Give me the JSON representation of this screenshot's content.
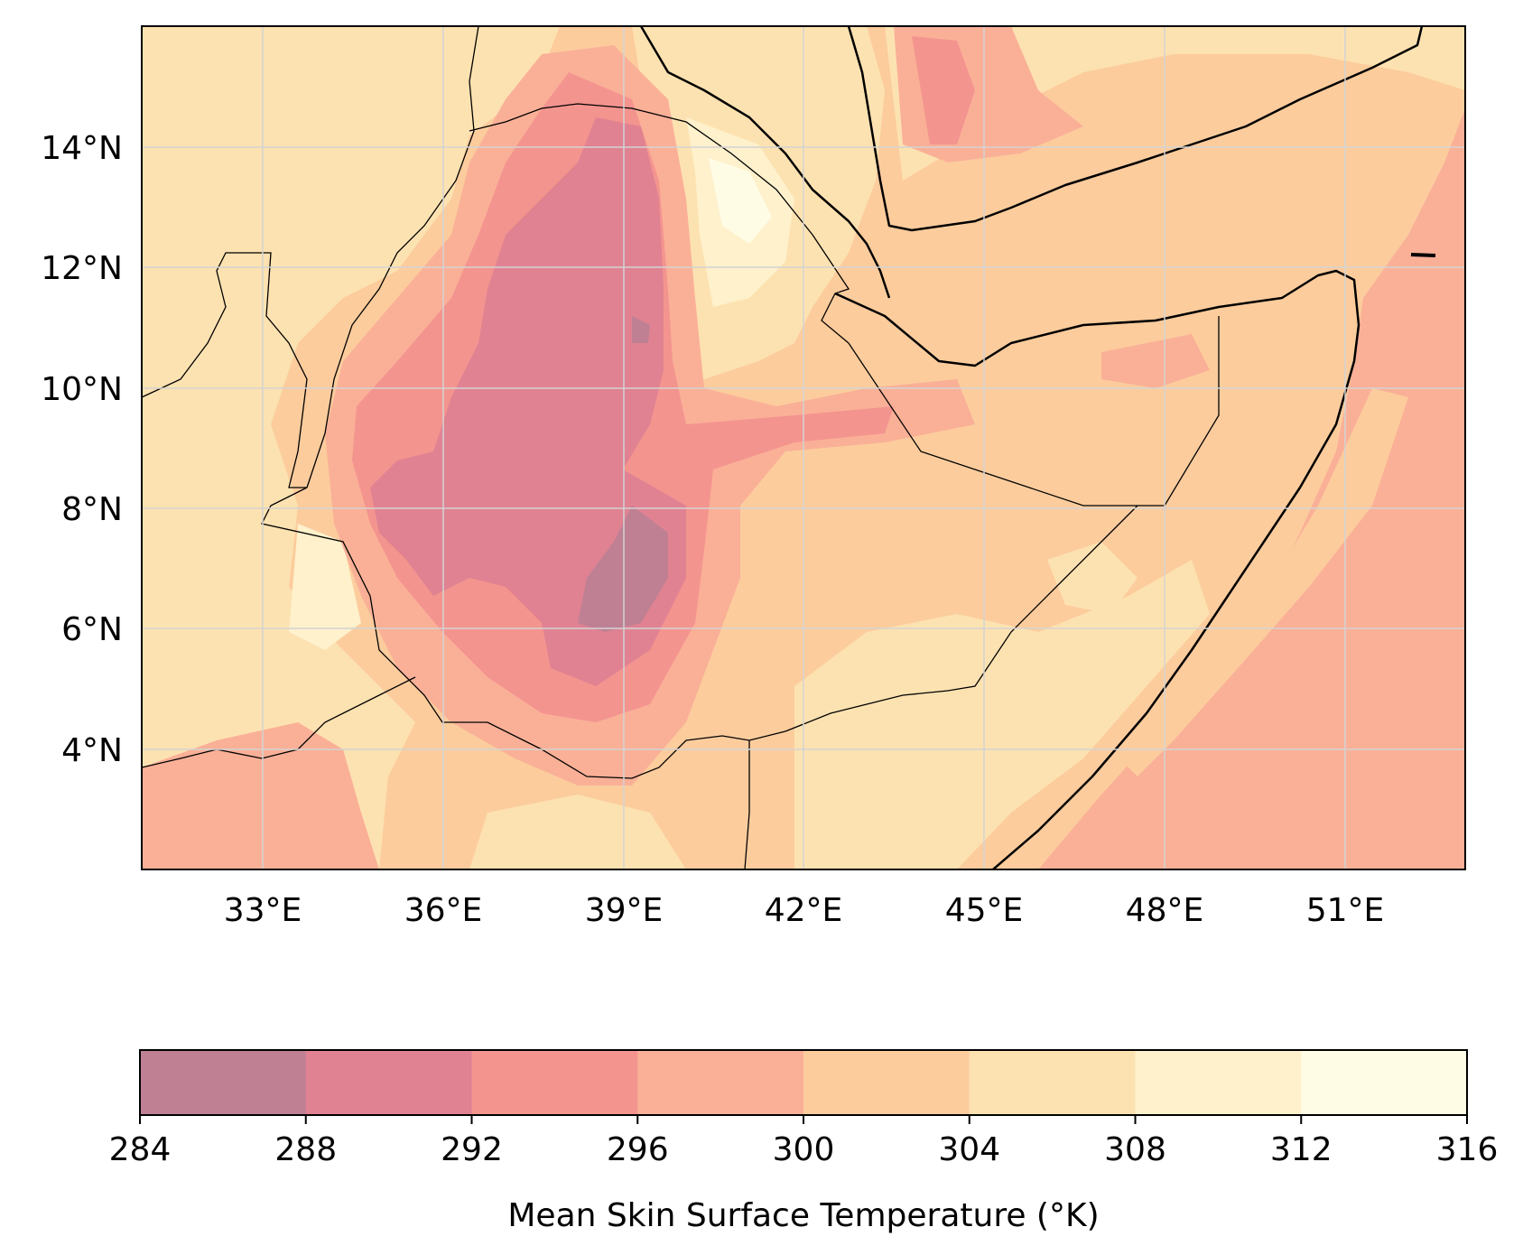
{
  "map": {
    "lon_range": [
      31,
      53
    ],
    "lat_range": [
      2,
      16
    ],
    "lon_ticks": [
      {
        "value": 33,
        "label": "33°E"
      },
      {
        "value": 36,
        "label": "36°E"
      },
      {
        "value": 39,
        "label": "39°E"
      },
      {
        "value": 42,
        "label": "42°E"
      },
      {
        "value": 45,
        "label": "45°E"
      },
      {
        "value": 48,
        "label": "48°E"
      },
      {
        "value": 51,
        "label": "51°E"
      }
    ],
    "lat_ticks": [
      {
        "value": 14,
        "label": "14°N"
      },
      {
        "value": 12,
        "label": "12°N"
      },
      {
        "value": 10,
        "label": "10°N"
      },
      {
        "value": 8,
        "label": "8°N"
      },
      {
        "value": 6,
        "label": "6°N"
      },
      {
        "value": 4,
        "label": "4°N"
      }
    ],
    "gridlines": true
  },
  "colorbar": {
    "label": "Mean Skin Surface Temperature (°K)",
    "ticks": [
      "284",
      "288",
      "292",
      "296",
      "300",
      "304",
      "308",
      "312",
      "316"
    ],
    "colors": [
      "#bf8094",
      "#e08292",
      "#f4948f",
      "#fab097",
      "#fccc9d",
      "#fde2b1",
      "#fef1cc",
      "#fffce6"
    ]
  }
}
